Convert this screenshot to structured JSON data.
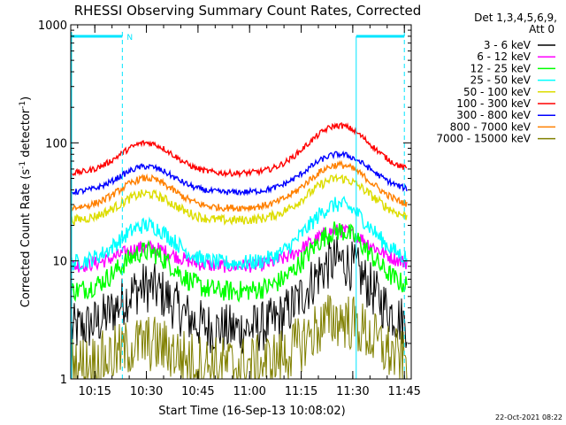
{
  "chart_data": {
    "type": "line",
    "title": "RHESSI Observing Summary Count Rates, Corrected",
    "xlabel": "Start Time (16-Sep-13 10:08:02)",
    "ylabel_main": "Corrected Count Rate (s",
    "ylabel_sup1": "-1",
    "ylabel_mid": " detector",
    "ylabel_sup2": "-1",
    "ylabel_end": ")",
    "yscale": "log",
    "ylim": [
      1,
      1000
    ],
    "xlim": [
      "10:08",
      "11:47"
    ],
    "y_ticks": [
      {
        "v": 1,
        "label": "1"
      },
      {
        "v": 10,
        "label": "10"
      },
      {
        "v": 100,
        "label": "100"
      },
      {
        "v": 1000,
        "label": "1000"
      }
    ],
    "x_ticks": [
      {
        "m": 15,
        "label": "10:15"
      },
      {
        "m": 30,
        "label": "10:30"
      },
      {
        "m": 45,
        "label": "10:45"
      },
      {
        "m": 60,
        "label": "11:00"
      },
      {
        "m": 75,
        "label": "11:15"
      },
      {
        "m": 90,
        "label": "11:30"
      },
      {
        "m": 105,
        "label": "11:45"
      }
    ],
    "legend_header": [
      "Det 1,3,4,5,6,9,",
      "Att 0"
    ],
    "legend_placement": "right",
    "series": [
      {
        "name": "3 - 6 keV",
        "color": "#000000",
        "base": 2.6,
        "peak1": 6.0,
        "peak2": 10.0,
        "noise": 0.22
      },
      {
        "name": "6 - 12 keV",
        "color": "#ff00ff",
        "base": 9.0,
        "peak1": 13.0,
        "peak2": 18.0,
        "noise": 0.06
      },
      {
        "name": "12 - 25 keV",
        "color": "#00ff00",
        "base": 5.5,
        "peak1": 12.0,
        "peak2": 18.0,
        "noise": 0.09
      },
      {
        "name": "25 - 50 keV",
        "color": "#00ffff",
        "base": 9.5,
        "peak1": 20.0,
        "peak2": 30.0,
        "noise": 0.07
      },
      {
        "name": "50 - 100 keV",
        "color": "#dddd00",
        "base": 22.0,
        "peak1": 37.0,
        "peak2": 50.0,
        "noise": 0.04
      },
      {
        "name": "100 - 300 keV",
        "color": "#ff0000",
        "base": 55.0,
        "peak1": 100.0,
        "peak2": 140.0,
        "noise": 0.025
      },
      {
        "name": "300 - 800 keV",
        "color": "#0000ff",
        "base": 38.0,
        "peak1": 63.0,
        "peak2": 80.0,
        "noise": 0.025
      },
      {
        "name": "800 - 7000 keV",
        "color": "#ff8000",
        "base": 28.0,
        "peak1": 50.0,
        "peak2": 65.0,
        "noise": 0.03
      },
      {
        "name": "7000 - 15000 keV",
        "color": "#808000",
        "base": 1.3,
        "peak1": 2.0,
        "peak2": 3.2,
        "noise": 0.25
      }
    ],
    "flag_marker_label": "N",
    "footer_date": "22-Oct-2021 08:22",
    "colors": {
      "flag": "#00e5ff",
      "axes": "#000000",
      "background": "#ffffff"
    }
  }
}
